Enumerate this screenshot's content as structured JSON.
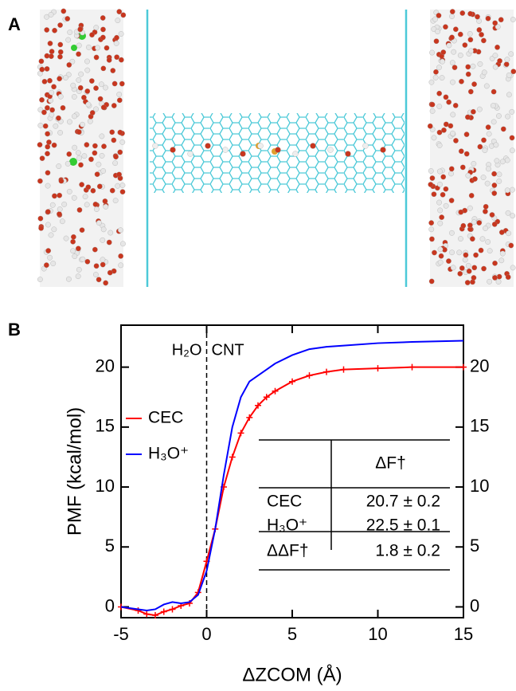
{
  "panel_a": {
    "label": "A"
  },
  "chart_data": {
    "type": "line",
    "panel_label": "B",
    "xlabel": "ΔZCOM (Å)",
    "ylabel": "PMF (kcal/mol)",
    "xlim": [
      -5,
      15
    ],
    "ylim": [
      -0.9,
      23.5
    ],
    "xticks": [
      -5,
      0,
      5,
      10,
      15
    ],
    "yticks": [
      0,
      5,
      10,
      15,
      20
    ],
    "vline": 0,
    "annotations": [
      "H₂O",
      "CNT"
    ],
    "x": [
      -5,
      -4,
      -3.5,
      -3,
      -2.5,
      -2,
      -1.5,
      -1,
      -0.5,
      0,
      0.5,
      1,
      1.5,
      2,
      2.5,
      3,
      3.5,
      4,
      5,
      6,
      7,
      8,
      10,
      12,
      15
    ],
    "series": [
      {
        "name": "CEC",
        "color": "#ff0000",
        "markers": true,
        "values": [
          0,
          -0.3,
          -0.6,
          -0.7,
          -0.4,
          -0.2,
          0.1,
          0.3,
          1.2,
          3.8,
          6.5,
          10,
          12.5,
          14.5,
          15.8,
          16.8,
          17.5,
          18,
          18.8,
          19.3,
          19.6,
          19.8,
          19.9,
          20,
          20
        ]
      },
      {
        "name": "H₃O⁺",
        "color": "#0000ff",
        "markers": false,
        "values": [
          0,
          -0.2,
          -0.3,
          -0.2,
          0.2,
          0.4,
          0.3,
          0.4,
          1.0,
          3,
          6.5,
          11,
          15,
          17.5,
          18.8,
          19.3,
          19.8,
          20.3,
          21,
          21.5,
          21.7,
          21.8,
          22,
          22.1,
          22.2
        ]
      }
    ],
    "table": {
      "column": "ΔF†",
      "rows": [
        [
          "CEC",
          "20.7 ± 0.2"
        ],
        [
          "H₃O⁺",
          "22.5 ± 0.1"
        ],
        [
          "ΔΔF†",
          "1.8 ± 0.2"
        ]
      ]
    }
  }
}
